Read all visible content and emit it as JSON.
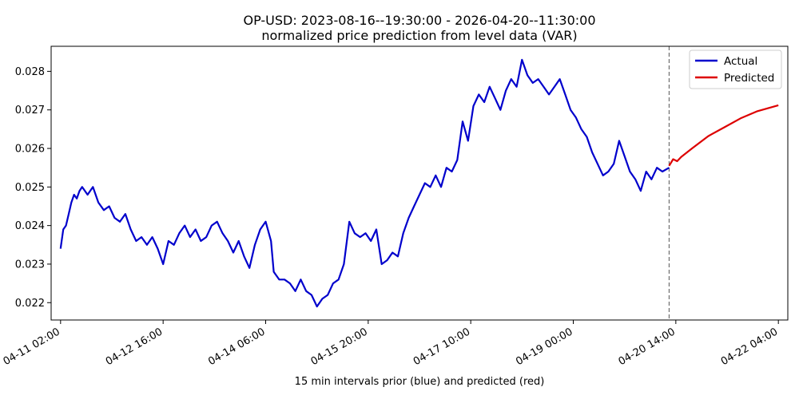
{
  "chart_data": {
    "type": "line",
    "title": "OP-USD: 2023-08-16--19:30:00 - 2026-04-20--11:30:00",
    "subtitle": "normalized price prediction from level data (VAR)",
    "xlabel": "15 min intervals prior (blue) and predicted (red)",
    "ylabel": "",
    "xlim": [
      "2026-04-10 22:30",
      "2026-04-22 07:30"
    ],
    "ylim": [
      0.02155,
      0.02865
    ],
    "x_ticks": [
      {
        "x": "2026-04-11 02:00",
        "label": "04-11 02:00"
      },
      {
        "x": "2026-04-12 16:00",
        "label": "04-12 16:00"
      },
      {
        "x": "2026-04-14 06:00",
        "label": "04-14 06:00"
      },
      {
        "x": "2026-04-15 20:00",
        "label": "04-15 20:00"
      },
      {
        "x": "2026-04-17 10:00",
        "label": "04-17 10:00"
      },
      {
        "x": "2026-04-19 00:00",
        "label": "04-19 00:00"
      },
      {
        "x": "2026-04-20 14:00",
        "label": "04-20 14:00"
      },
      {
        "x": "2026-04-22 04:00",
        "label": "04-22 04:00"
      }
    ],
    "y_ticks": [
      {
        "y": 0.022,
        "label": "0.022"
      },
      {
        "y": 0.023,
        "label": "0.023"
      },
      {
        "y": 0.024,
        "label": "0.024"
      },
      {
        "y": 0.025,
        "label": "0.025"
      },
      {
        "y": 0.026,
        "label": "0.026"
      },
      {
        "y": 0.027,
        "label": "0.027"
      },
      {
        "y": 0.028,
        "label": "0.028"
      }
    ],
    "divider_x": "2026-04-20 11:30",
    "grid": false,
    "legend_position": "top-right",
    "series": [
      {
        "name": "Actual",
        "color": "#0000cc",
        "points": [
          [
            "2026-04-11 02:00",
            0.0234
          ],
          [
            "2026-04-11 03:00",
            0.0239
          ],
          [
            "2026-04-11 04:00",
            0.024
          ],
          [
            "2026-04-11 05:00",
            0.0243
          ],
          [
            "2026-04-11 06:00",
            0.0246
          ],
          [
            "2026-04-11 07:00",
            0.0248
          ],
          [
            "2026-04-11 08:00",
            0.0247
          ],
          [
            "2026-04-11 09:00",
            0.0249
          ],
          [
            "2026-04-11 10:00",
            0.025
          ],
          [
            "2026-04-11 12:00",
            0.0248
          ],
          [
            "2026-04-11 14:00",
            0.025
          ],
          [
            "2026-04-11 16:00",
            0.0246
          ],
          [
            "2026-04-11 18:00",
            0.0244
          ],
          [
            "2026-04-11 20:00",
            0.0245
          ],
          [
            "2026-04-11 22:00",
            0.0242
          ],
          [
            "2026-04-12 00:00",
            0.0241
          ],
          [
            "2026-04-12 02:00",
            0.0243
          ],
          [
            "2026-04-12 04:00",
            0.0239
          ],
          [
            "2026-04-12 06:00",
            0.0236
          ],
          [
            "2026-04-12 08:00",
            0.0237
          ],
          [
            "2026-04-12 10:00",
            0.0235
          ],
          [
            "2026-04-12 12:00",
            0.0237
          ],
          [
            "2026-04-12 14:00",
            0.0234
          ],
          [
            "2026-04-12 16:00",
            0.023
          ],
          [
            "2026-04-12 18:00",
            0.0236
          ],
          [
            "2026-04-12 20:00",
            0.0235
          ],
          [
            "2026-04-12 22:00",
            0.0238
          ],
          [
            "2026-04-13 00:00",
            0.024
          ],
          [
            "2026-04-13 02:00",
            0.0237
          ],
          [
            "2026-04-13 04:00",
            0.0239
          ],
          [
            "2026-04-13 06:00",
            0.0236
          ],
          [
            "2026-04-13 08:00",
            0.0237
          ],
          [
            "2026-04-13 10:00",
            0.024
          ],
          [
            "2026-04-13 12:00",
            0.0241
          ],
          [
            "2026-04-13 14:00",
            0.0238
          ],
          [
            "2026-04-13 16:00",
            0.0236
          ],
          [
            "2026-04-13 18:00",
            0.0233
          ],
          [
            "2026-04-13 20:00",
            0.0236
          ],
          [
            "2026-04-13 22:00",
            0.0232
          ],
          [
            "2026-04-14 00:00",
            0.0229
          ],
          [
            "2026-04-14 02:00",
            0.0235
          ],
          [
            "2026-04-14 04:00",
            0.0239
          ],
          [
            "2026-04-14 06:00",
            0.0241
          ],
          [
            "2026-04-14 08:00",
            0.0236
          ],
          [
            "2026-04-14 09:00",
            0.0228
          ],
          [
            "2026-04-14 11:00",
            0.0226
          ],
          [
            "2026-04-14 13:00",
            0.0226
          ],
          [
            "2026-04-14 15:00",
            0.0225
          ],
          [
            "2026-04-14 17:00",
            0.0223
          ],
          [
            "2026-04-14 19:00",
            0.0226
          ],
          [
            "2026-04-14 21:00",
            0.0223
          ],
          [
            "2026-04-14 23:00",
            0.0222
          ],
          [
            "2026-04-15 01:00",
            0.0219
          ],
          [
            "2026-04-15 03:00",
            0.0221
          ],
          [
            "2026-04-15 05:00",
            0.0222
          ],
          [
            "2026-04-15 07:00",
            0.0225
          ],
          [
            "2026-04-15 09:00",
            0.0226
          ],
          [
            "2026-04-15 11:00",
            0.023
          ],
          [
            "2026-04-15 13:00",
            0.0241
          ],
          [
            "2026-04-15 15:00",
            0.0238
          ],
          [
            "2026-04-15 17:00",
            0.0237
          ],
          [
            "2026-04-15 19:00",
            0.0238
          ],
          [
            "2026-04-15 21:00",
            0.0236
          ],
          [
            "2026-04-15 23:00",
            0.0239
          ],
          [
            "2026-04-16 01:00",
            0.023
          ],
          [
            "2026-04-16 03:00",
            0.0231
          ],
          [
            "2026-04-16 05:00",
            0.0233
          ],
          [
            "2026-04-16 07:00",
            0.0232
          ],
          [
            "2026-04-16 09:00",
            0.0238
          ],
          [
            "2026-04-16 11:00",
            0.0242
          ],
          [
            "2026-04-16 13:00",
            0.0245
          ],
          [
            "2026-04-16 15:00",
            0.0248
          ],
          [
            "2026-04-16 17:00",
            0.0251
          ],
          [
            "2026-04-16 19:00",
            0.025
          ],
          [
            "2026-04-16 21:00",
            0.0253
          ],
          [
            "2026-04-16 23:00",
            0.025
          ],
          [
            "2026-04-17 01:00",
            0.0255
          ],
          [
            "2026-04-17 03:00",
            0.0254
          ],
          [
            "2026-04-17 05:00",
            0.0257
          ],
          [
            "2026-04-17 07:00",
            0.0267
          ],
          [
            "2026-04-17 09:00",
            0.0262
          ],
          [
            "2026-04-17 11:00",
            0.0271
          ],
          [
            "2026-04-17 13:00",
            0.0274
          ],
          [
            "2026-04-17 15:00",
            0.0272
          ],
          [
            "2026-04-17 17:00",
            0.0276
          ],
          [
            "2026-04-17 19:00",
            0.0273
          ],
          [
            "2026-04-17 21:00",
            0.027
          ],
          [
            "2026-04-17 23:00",
            0.0275
          ],
          [
            "2026-04-18 01:00",
            0.0278
          ],
          [
            "2026-04-18 03:00",
            0.0276
          ],
          [
            "2026-04-18 05:00",
            0.0283
          ],
          [
            "2026-04-18 07:00",
            0.0279
          ],
          [
            "2026-04-18 09:00",
            0.0277
          ],
          [
            "2026-04-18 11:00",
            0.0278
          ],
          [
            "2026-04-18 13:00",
            0.0276
          ],
          [
            "2026-04-18 15:00",
            0.0274
          ],
          [
            "2026-04-18 17:00",
            0.0276
          ],
          [
            "2026-04-18 19:00",
            0.0278
          ],
          [
            "2026-04-18 21:00",
            0.0274
          ],
          [
            "2026-04-18 23:00",
            0.027
          ],
          [
            "2026-04-19 01:00",
            0.0268
          ],
          [
            "2026-04-19 03:00",
            0.0265
          ],
          [
            "2026-04-19 05:00",
            0.0263
          ],
          [
            "2026-04-19 07:00",
            0.0259
          ],
          [
            "2026-04-19 09:00",
            0.0256
          ],
          [
            "2026-04-19 11:00",
            0.0253
          ],
          [
            "2026-04-19 13:00",
            0.0254
          ],
          [
            "2026-04-19 15:00",
            0.0256
          ],
          [
            "2026-04-19 17:00",
            0.0262
          ],
          [
            "2026-04-19 19:00",
            0.0258
          ],
          [
            "2026-04-19 21:00",
            0.0254
          ],
          [
            "2026-04-19 23:00",
            0.0252
          ],
          [
            "2026-04-20 01:00",
            0.0249
          ],
          [
            "2026-04-20 03:00",
            0.0254
          ],
          [
            "2026-04-20 05:00",
            0.0252
          ],
          [
            "2026-04-20 07:00",
            0.0255
          ],
          [
            "2026-04-20 09:00",
            0.0254
          ],
          [
            "2026-04-20 11:30",
            0.0255
          ]
        ]
      },
      {
        "name": "Predicted",
        "color": "#dd0000",
        "points": [
          [
            "2026-04-20 11:30",
            0.02555
          ],
          [
            "2026-04-20 13:00",
            0.02572
          ],
          [
            "2026-04-20 14:30",
            0.02567
          ],
          [
            "2026-04-20 16:00",
            0.02578
          ],
          [
            "2026-04-20 20:00",
            0.026
          ],
          [
            "2026-04-21 02:00",
            0.02632
          ],
          [
            "2026-04-21 08:00",
            0.02655
          ],
          [
            "2026-04-21 14:00",
            0.02678
          ],
          [
            "2026-04-21 20:00",
            0.02696
          ],
          [
            "2026-04-22 04:00",
            0.02712
          ]
        ]
      }
    ]
  }
}
